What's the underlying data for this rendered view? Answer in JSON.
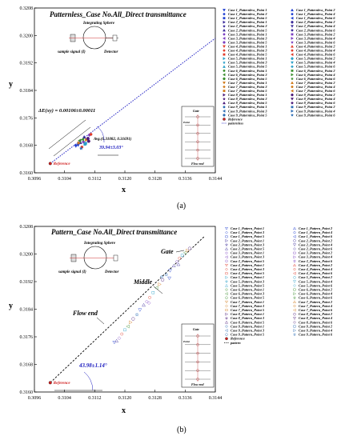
{
  "chart_data": [
    {
      "type": "scatter",
      "title": "Patternless_Case No.All_Direct transmittance",
      "xlabel": "x",
      "ylabel": "y",
      "xlim": [
        0.3096,
        0.3144
      ],
      "ylim": [
        0.316,
        0.3208
      ],
      "xticks": [
        "0.3096",
        "0.3104",
        "0.3112",
        "0.3120",
        "0.3128",
        "0.3136",
        "0.3144"
      ],
      "yticks": [
        "0.3160",
        "0.3168",
        "0.3176",
        "0.3184",
        "0.3192",
        "0.3200",
        "0.3208"
      ],
      "reference": {
        "x": 0.31002,
        "y": 0.31627,
        "label": "Reference"
      },
      "trend_label": "patternless",
      "trend_end": {
        "x": 0.3144,
        "y": 0.31992
      },
      "points": [
        [
          0.31076,
          0.31681
        ],
        [
          0.31082,
          0.31688
        ],
        [
          0.3109,
          0.3169
        ],
        [
          0.31086,
          0.31675
        ],
        [
          0.31094,
          0.31683
        ],
        [
          0.3108,
          0.31694
        ],
        [
          0.31098,
          0.31696
        ],
        [
          0.31102,
          0.317
        ],
        [
          0.31084,
          0.31671
        ],
        [
          0.3107,
          0.31678
        ],
        [
          0.31092,
          0.31704
        ],
        [
          0.31106,
          0.3171
        ],
        [
          0.3111,
          0.31712
        ],
        [
          0.31096,
          0.31686
        ],
        [
          0.31088,
          0.31697
        ],
        [
          0.31078,
          0.31687
        ],
        [
          0.31104,
          0.31692
        ]
      ],
      "legend": [
        "Case 1_Patternless_Point 1",
        "Case 1_Patternless_Point 2",
        "Case 1_Patternless_Point 3",
        "Case 1_Patternless_Point 4",
        "Case 1_Patternless_Point 5",
        "Case 1_Patternless_Point 6",
        "Case 2_Patternless_Point 1",
        "Case 2_Patternless_Point 2",
        "Case 2_Patternless_Point 3",
        "Case 2_Patternless_Point 4",
        "Case 2_Patternless_Point 5",
        "Case 2_Patternless_Point 6",
        "Case 3_Patternless_Point 1",
        "Case 3_Patternless_Point 2",
        "Case 3_Patternless_Point 3",
        "Case 3_Patternless_Point 4",
        "Case 3_Patternless_Point 5",
        "Case 3_Patternless_Point 6",
        "Case 4_Patternless_Point 1",
        "Case 4_Patternless_Point 2",
        "Case 4_Patternless_Point 3",
        "Case 4_Patternless_Point 4",
        "Case 4_Patternless_Point 5",
        "Case 4_Patternless_Point 6",
        "Case 5_Patternless_Point 1",
        "Case 5_Patternless_Point 2",
        "Case 5_Patternless_Point 3",
        "Case 5_Patternless_Point 4",
        "Case 5_Patternless_Point 5",
        "Case 5_Patternless_Point 6",
        "Case 6_Patternless_Point 1",
        "Case 6_Patternless_Point 2",
        "Case 6_Patternless_Point 3",
        "Case 6_Patternless_Point 4",
        "Case 6_Patternless_Point 5",
        "Case 6_Patternless_Point 6",
        "Case 7_Patternless_Point 1",
        "Case 7_Patternless_Point 2",
        "Case 7_Patternless_Point 3",
        "Case 7_Patternless_Point 4",
        "Case 7_Patternless_Point 5",
        "Case 7_Patternless_Point 6",
        "Case 8_Patternless_Point 1",
        "Case 8_Patternless_Point 2",
        "Case 8_Patternless_Point 3",
        "Case 8_Patternless_Point 4",
        "Case 8_Patternless_Point 5",
        "Case 8_Patternless_Point 6",
        "Case 9_Patternless_Point 1",
        "Case 9_Patternless_Point 2",
        "Case 9_Patternless_Point 3",
        "Case 9_Patternless_Point 4",
        "Case 9_Patternless_Point 5",
        "Case 9_Patternless_Point 6",
        "Reference",
        "patternless"
      ],
      "annotations": {
        "delta": "ΔE(xy) = 0.00106±0.00011",
        "avg": "Avg.(0.31082, 0.31691)",
        "angle": "39.94±3.03°",
        "sphere": "Integrating Sphere",
        "signal": "sample signal (I)",
        "detector": "Detector",
        "gate": "Gate",
        "point": "Point",
        "flow_end": "Flow end"
      },
      "caption": "(a)"
    },
    {
      "type": "scatter",
      "title": "Pattern_Case No.All_Direct transmittance",
      "xlabel": "x",
      "ylabel": "y",
      "xlim": [
        0.3096,
        0.3144
      ],
      "ylim": [
        0.316,
        0.3208
      ],
      "xticks": [
        "0.3096",
        "0.3104",
        "0.3112",
        "0.3120",
        "0.3128",
        "0.3136",
        "0.3144"
      ],
      "yticks": [
        "0.3160",
        "0.3168",
        "0.3176",
        "0.3184",
        "0.3192",
        "0.3200",
        "0.3208"
      ],
      "reference": {
        "x": 0.31002,
        "y": 0.31627,
        "label": "Reference"
      },
      "trend_label": "pattern",
      "trend_end": {
        "x": 0.3141,
        "y": 0.3205
      },
      "points": [
        [
          0.31172,
          0.31744
        ],
        [
          0.31178,
          0.31748
        ],
        [
          0.31185,
          0.31756
        ],
        [
          0.31192,
          0.31768
        ],
        [
          0.312,
          0.3178
        ],
        [
          0.31208,
          0.3179
        ],
        [
          0.31215,
          0.31802
        ],
        [
          0.31222,
          0.31812
        ],
        [
          0.31232,
          0.31824
        ],
        [
          0.3124,
          0.31838
        ],
        [
          0.3125,
          0.31852
        ],
        [
          0.31258,
          0.31862
        ],
        [
          0.31266,
          0.31874
        ],
        [
          0.31275,
          0.31888
        ],
        [
          0.31284,
          0.31902
        ],
        [
          0.31292,
          0.31912
        ],
        [
          0.313,
          0.31925
        ],
        [
          0.3131,
          0.3194
        ],
        [
          0.3132,
          0.31952
        ],
        [
          0.3133,
          0.31966
        ],
        [
          0.31338,
          0.31978
        ],
        [
          0.31345,
          0.31988
        ],
        [
          0.31352,
          0.31996
        ],
        [
          0.3136,
          0.32004
        ],
        [
          0.31366,
          0.3201
        ],
        [
          0.31372,
          0.32016
        ],
        [
          0.31298,
          0.31934
        ],
        [
          0.31318,
          0.3193
        ],
        [
          0.31342,
          0.3197
        ],
        [
          0.31264,
          0.31858
        ]
      ],
      "legend": [
        "Case 1_Pattern_Point 1",
        "Case 1_Pattern_Point 2",
        "Case 1_Pattern_Point 3",
        "Case 1_Pattern_Point 4",
        "Case 1_Pattern_Point 5",
        "Case 1_Pattern_Point 6",
        "Case 2_Pattern_Point 1",
        "Case 2_Pattern_Point 2",
        "Case 2_Pattern_Point 3",
        "Case 2_Pattern_Point 4",
        "Case 2_Pattern_Point 5",
        "Case 2_Pattern_Point 6",
        "Case 3_Pattern_Point 1",
        "Case 3_Pattern_Point 2",
        "Case 3_Pattern_Point 3",
        "Case 3_Pattern_Point 4",
        "Case 3_Pattern_Point 5",
        "Case 3_Pattern_Point 6",
        "Case 4_Pattern_Point 1",
        "Case 4_Pattern_Point 2",
        "Case 4_Pattern_Point 3",
        "Case 4_Pattern_Point 4",
        "Case 4_Pattern_Point 5",
        "Case 4_Pattern_Point 6",
        "Case 5_Pattern_Point 1",
        "Case 5_Pattern_Point 2",
        "Case 5_Pattern_Point 3",
        "Case 5_Pattern_Point 4",
        "Case 5_Pattern_Point 5",
        "Case 5_Pattern_Point 6",
        "Case 6_Pattern_Point 1",
        "Case 6_Pattern_Point 2",
        "Case 6_Pattern_Point 3",
        "Case 6_Pattern_Point 4",
        "Case 6_Pattern_Point 5",
        "Case 6_Pattern_Point 6",
        "Case 7_Pattern_Point 1",
        "Case 7_Pattern_Point 2",
        "Case 7_Pattern_Point 3",
        "Case 7_Pattern_Point 4",
        "Case 7_Pattern_Point 5",
        "Case 7_Pattern_Point 6",
        "Case 8_Pattern_Point 1",
        "Case 8_Pattern_Point 2",
        "Case 8_Pattern_Point 3",
        "Case 8_Pattern_Point 4",
        "Case 8_Pattern_Point 5",
        "Case 8_Pattern_Point 6",
        "Case 9_Pattern_Point 1",
        "Case 9_Pattern_Point 2",
        "Case 9_Pattern_Point 3",
        "Case 9_Pattern_Point 4",
        "Case 9_Pattern_Point 5",
        "Case 9_Pattern_Point 6",
        "Reference",
        "pattern"
      ],
      "annotations": {
        "gate_label": "Gate",
        "middle_label": "Middle",
        "flowend_label": "Flow end",
        "angle": "43.98±1.14°",
        "sphere": "Integrating Sphere",
        "signal": "sample signal (I)",
        "detector": "Detector",
        "gate": "Gate",
        "point": "Point",
        "flow_end": "Flow end"
      },
      "caption": "(b)"
    }
  ],
  "style": {
    "series_colors": [
      "#1f3fd1",
      "#3a2a9a",
      "#7b3fc1",
      "#e03a2a",
      "#2aa0c8",
      "#3b8f2e",
      "#d07a1a",
      "#4b1a7a",
      "#2c6db5"
    ],
    "trend_color_a": "#2f2fc8",
    "trend_color_b": "#000000",
    "reference_color": "#d02020",
    "angle_text_color": "#2020c0"
  }
}
